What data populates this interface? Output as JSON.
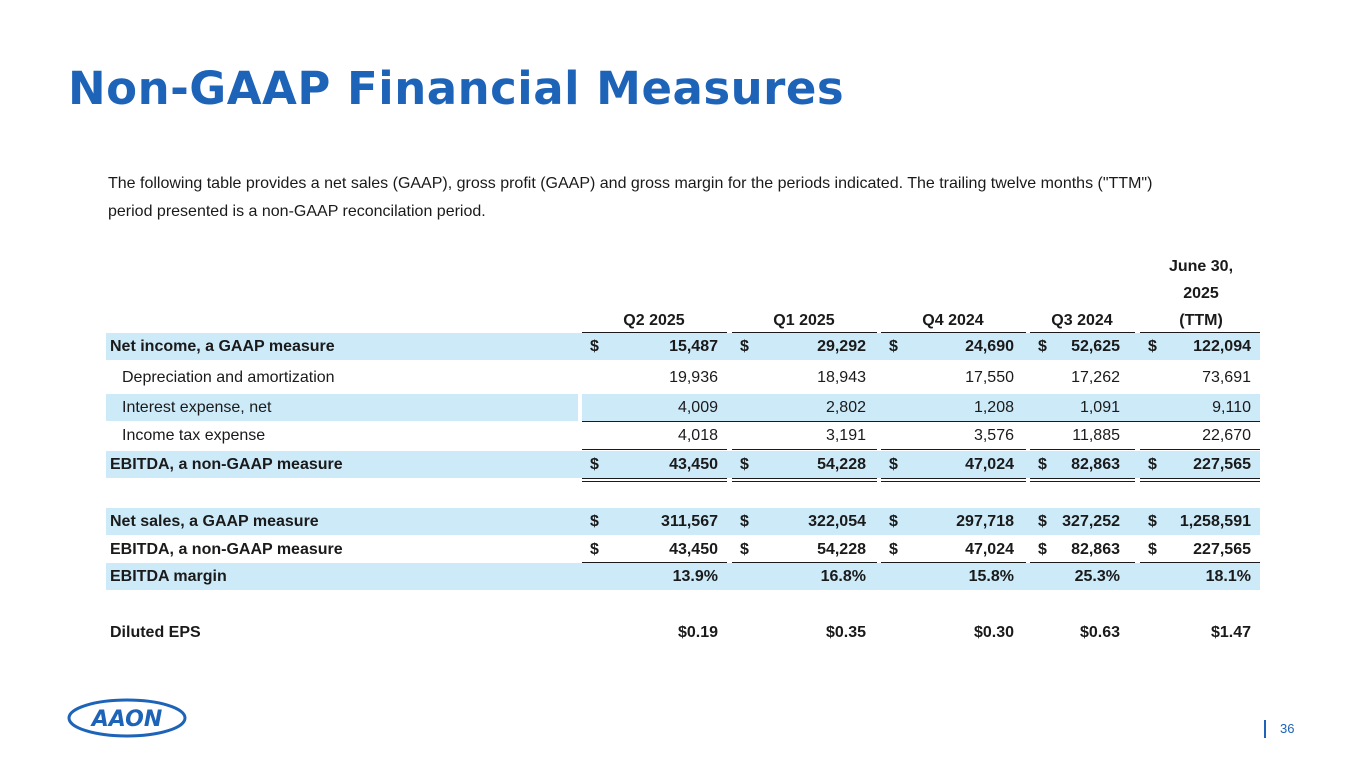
{
  "title": "Non-GAAP Financial Measures",
  "intro": "The following table provides a net sales (GAAP), gross profit (GAAP) and gross margin for the periods indicated.   The trailing twelve months (\"TTM\") period presented is a non-GAAP reconcilation period.",
  "columns": [
    "Q2 2025",
    "Q1 2025",
    "Q4 2024",
    "Q3 2024"
  ],
  "ttm_header": [
    "June 30,",
    "2025",
    "(TTM)"
  ],
  "rows": {
    "net_income": {
      "label": "Net income, a GAAP measure",
      "values": [
        "15,487",
        "29,292",
        "24,690",
        "52,625",
        "122,094"
      ]
    },
    "depreciation": {
      "label": "Depreciation and amortization",
      "values": [
        "19,936",
        "18,943",
        "17,550",
        "17,262",
        "73,691"
      ]
    },
    "interest": {
      "label": "Interest expense, net",
      "values": [
        "4,009",
        "2,802",
        "1,208",
        "1,091",
        "9,110"
      ]
    },
    "tax": {
      "label": "Income tax expense",
      "values": [
        "4,018",
        "3,191",
        "3,576",
        "11,885",
        "22,670"
      ]
    },
    "ebitda": {
      "label": "EBITDA, a non-GAAP measure",
      "values": [
        "43,450",
        "54,228",
        "47,024",
        "82,863",
        "227,565"
      ]
    },
    "net_sales": {
      "label": "Net sales, a GAAP measure",
      "values": [
        "311,567",
        "322,054",
        "297,718",
        "327,252",
        "1,258,591"
      ]
    },
    "ebitda2": {
      "label": "EBITDA, a non-GAAP measure",
      "values": [
        "43,450",
        "54,228",
        "47,024",
        "82,863",
        "227,565"
      ]
    },
    "margin": {
      "label": "EBITDA margin",
      "values": [
        "13.9%",
        "16.8%",
        "15.8%",
        "25.3%",
        "18.1%"
      ]
    },
    "eps": {
      "label": "Diluted EPS",
      "values": [
        "$0.19",
        "$0.35",
        "$0.30",
        "$0.63",
        "$1.47"
      ]
    }
  },
  "currency_symbol": "$",
  "logo_text": "AAON",
  "page_number": "36",
  "colors": {
    "title": "#1d63b8",
    "band": "#cdeaf9"
  }
}
